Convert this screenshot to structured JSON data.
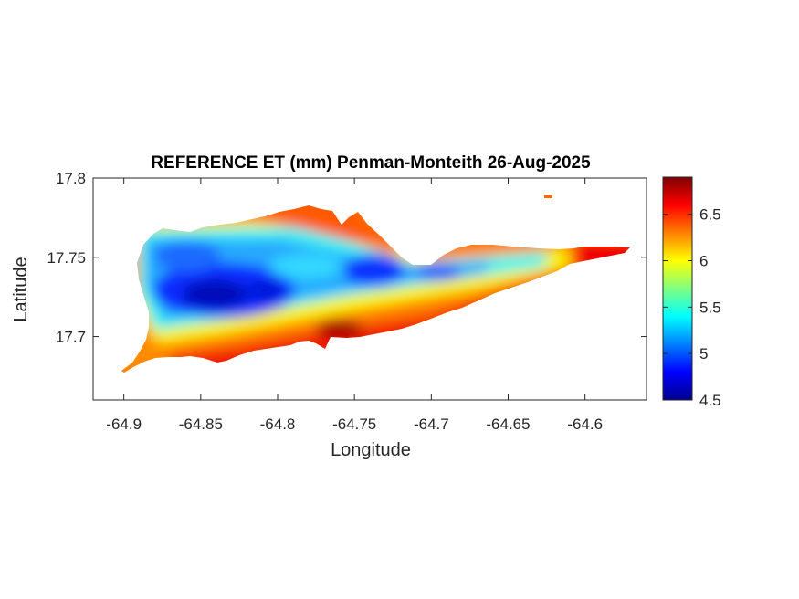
{
  "chart_data": {
    "type": "heatmap",
    "title": "REFERENCE ET (mm) Penman-Monteith 26-Aug-2025",
    "xlabel": "Longitude",
    "ylabel": "Latitude",
    "xlim": [
      -64.92,
      -64.56
    ],
    "ylim": [
      17.66,
      17.8
    ],
    "x_ticks": [
      -64.9,
      -64.85,
      -64.8,
      -64.75,
      -64.7,
      -64.65,
      -64.6
    ],
    "x_tick_labels": [
      "-64.9",
      "-64.85",
      "-64.8",
      "-64.75",
      "-64.7",
      "-64.65",
      "-64.6"
    ],
    "y_ticks": [
      17.7,
      17.75,
      17.8
    ],
    "y_tick_labels": [
      "17.7",
      "17.75",
      "17.8"
    ],
    "colorbar": {
      "colormap": "jet",
      "clim": [
        4.5,
        6.9
      ],
      "ticks": [
        4.5,
        5,
        5.5,
        6,
        6.5
      ],
      "tick_labels": [
        "4.5",
        "5",
        "5.5",
        "6",
        "6.5"
      ]
    },
    "grid": false,
    "field_summary": {
      "min_region": "west-central island interior",
      "max_region": "southern coast and eastern tip",
      "value_range": [
        4.5,
        6.9
      ]
    }
  }
}
